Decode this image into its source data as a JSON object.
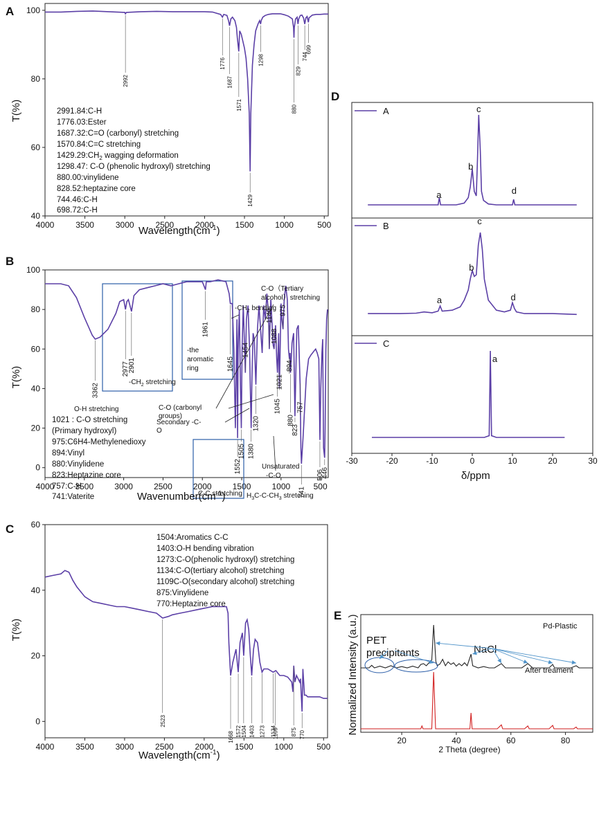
{
  "colors": {
    "curve": "#5b3fa6",
    "xrd_top": "#222222",
    "xrd_bottom": "#d21f1f",
    "box": "#2b5ea8",
    "arrow": "#4f93c9"
  },
  "chart_data": [
    {
      "panel": "A",
      "type": "line",
      "xlabel": "Wavelength(cm",
      "xlabel_sup": "-1",
      "xlabel_end": ")",
      "ylabel": "T(%)",
      "xlim": [
        4000,
        450
      ],
      "ylim": [
        40,
        102
      ],
      "xticks": [
        "4000",
        "3500",
        "3000",
        "2500",
        "2000",
        "1500",
        "1000",
        "500"
      ],
      "yticks": [
        "40",
        "60",
        "80",
        "100"
      ],
      "series": [
        {
          "x": [
            4000,
            3800,
            3600,
            3400,
            3200,
            3000,
            2992,
            2980,
            2800,
            2600,
            2400,
            2200,
            2000,
            1900,
            1800,
            1776,
            1760,
            1720,
            1700,
            1687,
            1670,
            1650,
            1620,
            1600,
            1590,
            1571,
            1560,
            1540,
            1520,
            1500,
            1480,
            1460,
            1440,
            1429,
            1420,
            1400,
            1380,
            1360,
            1330,
            1310,
            1298,
            1290,
            1270,
            1240,
            1200,
            1150,
            1100,
            1050,
            1000,
            950,
            900,
            885,
            880,
            875,
            860,
            840,
            829,
            820,
            800,
            780,
            760,
            744,
            730,
            715,
            699,
            690,
            650,
            600,
            550,
            500,
            450
          ],
          "y": [
            99.5,
            99.5,
            99.7,
            99.8,
            99.6,
            99.4,
            99.0,
            99.4,
            99.6,
            99.7,
            99.6,
            99.6,
            99.6,
            99.5,
            98.8,
            98.0,
            98.8,
            98.5,
            97.0,
            95.5,
            97.5,
            98,
            97,
            95,
            92,
            88,
            94,
            93,
            91,
            89,
            86,
            80,
            70,
            53,
            70,
            84,
            90,
            94,
            96,
            97,
            96,
            97,
            98,
            98.5,
            98.8,
            99,
            99,
            99,
            98.7,
            98.3,
            97.5,
            95,
            92,
            95,
            97.5,
            98,
            96,
            97.5,
            98.5,
            98.6,
            97.8,
            96,
            97.8,
            98.2,
            96.5,
            97.8,
            98.6,
            98.8,
            98.8,
            98.9,
            98.9
          ]
        }
      ],
      "peaks": [
        "2992",
        "1776",
        "1687",
        "1571",
        "1429",
        "1298",
        "880",
        "829",
        "744",
        "699"
      ],
      "notes": [
        "2991.84:C-H",
        "1776.03:Ester",
        "1687.32:C=O (carbonyl) stretching",
        "1570.84:C=C  stretching",
        "1429.29:CH",
        "2",
        " wagging deformation",
        "1298.47: C-O (phenolic hydroxyl) stretching",
        "880.00:vinylidene",
        "828.52:heptazine core",
        "744.46:C-H",
        "698.72:C-H"
      ]
    },
    {
      "panel": "B",
      "type": "line",
      "xlabel": "Wavenumber(cm",
      "xlabel_sup": "-1",
      "xlabel_end": ")",
      "ylabel": "T(%)",
      "xlim": [
        4000,
        400
      ],
      "ylim": [
        -5,
        100
      ],
      "xticks": [
        "4000",
        "3500",
        "3000",
        "2500",
        "2000",
        "1500",
        "1000",
        "500"
      ],
      "yticks": [
        "0",
        "20",
        "40",
        "60",
        "80",
        "100"
      ],
      "series": [
        {
          "x": [
            4000,
            3800,
            3700,
            3600,
            3500,
            3400,
            3362,
            3300,
            3200,
            3100,
            3050,
            3000,
            2977,
            2960,
            2940,
            2901,
            2870,
            2800,
            2700,
            2600,
            2500,
            2400,
            2300,
            2200,
            2100,
            2000,
            1961,
            1950,
            1900,
            1800,
            1700,
            1660,
            1645,
            1620,
            1600,
            1580,
            1560,
            1552,
            1545,
            1530,
            1515,
            1505,
            1495,
            1480,
            1470,
            1454,
            1440,
            1420,
            1400,
            1390,
            1380,
            1370,
            1355,
            1340,
            1320,
            1300,
            1280,
            1260,
            1240,
            1220,
            1200,
            1180,
            1160,
            1149,
            1130,
            1110,
            1100,
            1088,
            1070,
            1055,
            1045,
            1030,
            1021,
            1010,
            1000,
            990,
            975,
            960,
            940,
            920,
            905,
            894,
            885,
            880,
            870,
            860,
            840,
            823,
            800,
            780,
            757,
            748,
            741,
            720,
            700,
            680,
            650,
            620,
            600,
            580,
            560,
            540,
            520,
            506,
            495,
            480,
            470,
            460,
            446,
            440,
            430,
            420,
            410
          ],
          "y": [
            93,
            93,
            92,
            86,
            76,
            67,
            65,
            66,
            70,
            78,
            84,
            85,
            80,
            84,
            85,
            79,
            87,
            90,
            91,
            92,
            93,
            92,
            93,
            94,
            94,
            94,
            90,
            94,
            94,
            95,
            94,
            88,
            83,
            83,
            60,
            20,
            75,
            15,
            60,
            80,
            40,
            20,
            60,
            82,
            70,
            48,
            75,
            82,
            60,
            40,
            20,
            45,
            68,
            65,
            42,
            70,
            82,
            70,
            58,
            82,
            75,
            88,
            78,
            60,
            85,
            70,
            62,
            60,
            72,
            55,
            48,
            68,
            40,
            62,
            83,
            75,
            70,
            85,
            92,
            85,
            60,
            55,
            58,
            48,
            55,
            63,
            68,
            26,
            70,
            72,
            42,
            10,
            2,
            15,
            30,
            45,
            55,
            57,
            58,
            59,
            60,
            58,
            55,
            14,
            40,
            58,
            65,
            10,
            5,
            20,
            60,
            75,
            80
          ]
        }
      ],
      "peaks": [
        "3362",
        "2977",
        "2901",
        "1961",
        "1645",
        "1454",
        "1149",
        "1088",
        "975",
        "894",
        "1021",
        "1045",
        "1320",
        "880",
        "823",
        "757",
        "1552",
        "1505",
        "1380",
        "741",
        "506",
        "446"
      ],
      "annotations": [
        "O-H stretching",
        "-CH",
        "2",
        " stretching",
        "-the",
        "aromatic",
        "ring",
        "-CH",
        "2",
        " bending",
        "C-O（Tertiary",
        "alcohol）stretching",
        "C-O (carbonyl",
        "groups)",
        "Secondary -C-",
        "O",
        "Unsaturated",
        "-C-O",
        "C-C stretching",
        "H",
        "3",
        "C-C-CH",
        "3",
        " stretching"
      ],
      "notes": [
        "1021 : C-O stretching",
        "(Primary hydroxyl)",
        "975:C6H4-Methylenedioxy",
        "894:Vinyl",
        "880:Vinylidene",
        "823:Heptazine core",
        "757:C-H",
        "741:Vaterite"
      ]
    },
    {
      "panel": "C",
      "type": "line",
      "xlabel": "Wavelength(cm",
      "xlabel_sup": "-1",
      "xlabel_end": ")",
      "ylabel": "T(%)",
      "xlim": [
        4000,
        450
      ],
      "ylim": [
        -5,
        60
      ],
      "xticks": [
        "4000",
        "3500",
        "3000",
        "2500",
        "2000",
        "1500",
        "1000",
        "500"
      ],
      "yticks": [
        "0",
        "20",
        "40",
        "60"
      ],
      "series": [
        {
          "x": [
            4000,
            3900,
            3800,
            3750,
            3700,
            3650,
            3600,
            3500,
            3400,
            3300,
            3200,
            3100,
            3000,
            2900,
            2800,
            2700,
            2600,
            2523,
            2450,
            2400,
            2300,
            2200,
            2100,
            2000,
            1900,
            1800,
            1720,
            1700,
            1690,
            1668,
            1640,
            1600,
            1572,
            1550,
            1520,
            1504,
            1480,
            1460,
            1440,
            1420,
            1403,
            1380,
            1360,
            1330,
            1300,
            1273,
            1250,
            1200,
            1134,
            1100,
            1050,
            1000,
            950,
            900,
            885,
            875,
            860,
            840,
            820,
            800,
            790,
            770,
            760,
            740,
            720,
            700,
            650,
            600,
            550,
            500,
            450
          ],
          "y": [
            44,
            44.5,
            45,
            46,
            45.5,
            43,
            41,
            38,
            36.5,
            36,
            35.5,
            35,
            35,
            34.5,
            34,
            33.5,
            33,
            31.5,
            32,
            32.5,
            33,
            33.5,
            34,
            34.5,
            35,
            35,
            35,
            33,
            24,
            14,
            18,
            22,
            15,
            24,
            27,
            20,
            30,
            31,
            28,
            20,
            14,
            22,
            25,
            24,
            18,
            15,
            16,
            16,
            15,
            15.5,
            14,
            14,
            13.5,
            12,
            9,
            17,
            12,
            14,
            13,
            12,
            13,
            3,
            16,
            8,
            8,
            7.5,
            7.5,
            7.5,
            7.5,
            7,
            7
          ]
        }
      ],
      "peaks": [
        "2523",
        "1668",
        "1572",
        "1504",
        "1403",
        "1273",
        "1134",
        "1109",
        "875",
        "770"
      ],
      "notes": [
        "1504:Aromatics C-C",
        "1403:O-H bending vibration",
        "1273:C-O(phenolic hydroxyl) stretching",
        "1134:C-O(tertiary alcohol) stretching",
        "1109C-O(secondary alcohol) stretching",
        "875:Vinylidene",
        "770:Heptazine core"
      ]
    },
    {
      "panel": "D",
      "type": "line",
      "xlabel": "δ/ppm",
      "xlim": [
        -30,
        30
      ],
      "xticks": [
        "-30",
        "-20",
        "-10",
        "0",
        "10",
        "20",
        "30"
      ],
      "series": [
        {
          "name": "A",
          "x": [
            -26,
            -20,
            -15,
            -10,
            -8.5,
            -8.2,
            -7.9,
            -4,
            -2,
            -1,
            -0.5,
            0,
            0.5,
            1,
            1.3,
            1.6,
            2,
            2.3,
            2.8,
            4,
            6,
            8,
            10,
            10.3,
            10.6,
            14,
            20,
            26
          ],
          "y": [
            0,
            0,
            0,
            0,
            0,
            0.08,
            0,
            0,
            0.02,
            0.08,
            0.2,
            0.4,
            0.15,
            0.1,
            0.5,
            1.0,
            0.6,
            0.15,
            0.05,
            0.01,
            0,
            0,
            0,
            0.06,
            0,
            0,
            0,
            0
          ]
        },
        {
          "name": "B",
          "x": [
            -26,
            -22,
            -18,
            -14,
            -12,
            -10,
            -8.5,
            -8,
            -7.5,
            -5,
            -3,
            -2,
            -1,
            -0.5,
            0,
            0.5,
            1,
            1.5,
            2,
            2.5,
            3,
            4,
            6,
            8,
            9.5,
            10,
            10.5,
            11,
            13,
            16,
            20,
            26
          ],
          "y": [
            0.04,
            0.04,
            0.04,
            0.045,
            0.06,
            0.05,
            0.07,
            0.13,
            0.07,
            0.08,
            0.12,
            0.2,
            0.32,
            0.45,
            0.55,
            0.48,
            0.5,
            0.85,
            1.0,
            0.8,
            0.45,
            0.2,
            0.08,
            0.06,
            0.08,
            0.17,
            0.1,
            0.06,
            0.04,
            0.04,
            0.04,
            0.03
          ]
        },
        {
          "name": "C",
          "x": [
            -25,
            -10,
            0,
            3,
            4.2,
            4.5,
            4.8,
            6,
            10,
            20,
            23
          ],
          "y": [
            0,
            0,
            0,
            0,
            0.02,
            1.0,
            0.02,
            0,
            0,
            0,
            0
          ]
        }
      ],
      "legend": [
        "A",
        "B",
        "C"
      ],
      "peak_labels": [
        {
          "trace": "A",
          "labels": [
            "a",
            "b",
            "c",
            "d"
          ]
        },
        {
          "trace": "B",
          "labels": [
            "a",
            "b",
            "c",
            "d"
          ]
        },
        {
          "trace": "C",
          "labels": [
            "a"
          ]
        }
      ]
    },
    {
      "panel": "E",
      "type": "line",
      "xlabel": "2 Theta (degree)",
      "ylabel": "Normalized Intensity (a.u.)",
      "xlim": [
        5,
        90
      ],
      "xticks": [
        "20",
        "40",
        "60",
        "80"
      ],
      "series": [
        {
          "name": "Pd-Plastic",
          "x": [
            5,
            8,
            9,
            10,
            12,
            14,
            16,
            18,
            20,
            22,
            24,
            26,
            27,
            28,
            29,
            30,
            31,
            31.7,
            32.5,
            33,
            34,
            35,
            36,
            37,
            38,
            39,
            40,
            41,
            42,
            43,
            44,
            45.4,
            46,
            48,
            50,
            52,
            54,
            56.5,
            58,
            60,
            62,
            64,
            66.2,
            68,
            70,
            72,
            74,
            75.3,
            76,
            78,
            80,
            82,
            83.9,
            85,
            88,
            90
          ],
          "y": [
            0,
            0,
            0.06,
            0,
            0.04,
            0,
            0.05,
            0,
            0.03,
            0,
            0.04,
            0,
            0.08,
            0.1,
            0.05,
            0.12,
            0.18,
            1.0,
            0.15,
            0.05,
            0.09,
            0.2,
            0.05,
            0.14,
            0.08,
            0.12,
            0.04,
            0.1,
            0.05,
            0.12,
            0.05,
            0.32,
            0.05,
            0,
            0.03,
            0,
            0,
            0.1,
            0,
            0,
            0,
            0,
            0.1,
            0,
            0,
            0,
            0,
            0.08,
            0,
            0,
            0,
            0,
            0.05,
            0,
            0,
            0
          ]
        },
        {
          "name": "After treament",
          "x": [
            5,
            20,
            27,
            27.4,
            27.8,
            31,
            31.7,
            32.4,
            40,
            45,
            45.4,
            45.8,
            55,
            56.5,
            57,
            65,
            66.2,
            66.7,
            74,
            75.3,
            75.8,
            83,
            83.9,
            84.4,
            90
          ],
          "y": [
            0,
            0,
            0,
            0.05,
            0,
            0,
            1.0,
            0,
            0,
            0,
            0.28,
            0,
            0,
            0.07,
            0,
            0,
            0.05,
            0,
            0,
            0.06,
            0,
            0,
            0.03,
            0,
            0
          ]
        }
      ],
      "labels": {
        "top": "Pd-Plastic",
        "bottom": "After treament",
        "pet1": "PET",
        "pet2": "precipitants",
        "nacl": "NaCl"
      }
    }
  ]
}
